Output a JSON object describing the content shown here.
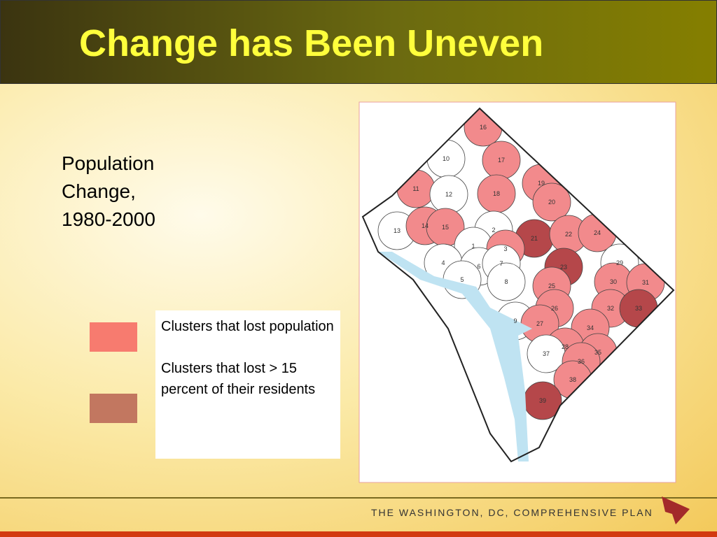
{
  "header": {
    "title": "Change has Been Uneven"
  },
  "subtitle": {
    "lines": [
      "Population",
      "Change,",
      "1980-2000"
    ]
  },
  "legend": {
    "items": [
      {
        "color": "#f77b6f",
        "label": "Clusters that lost population"
      },
      {
        "color": "#c27760",
        "label": "Clusters that lost > 15 percent of their residents"
      }
    ]
  },
  "map": {
    "clusters": [
      {
        "label": "16",
        "color": "#f28a8c"
      },
      {
        "label": "17",
        "color": "#f28a8c"
      },
      {
        "label": "10",
        "color": "#ffffff"
      },
      {
        "label": "11",
        "color": "#f28a8c"
      },
      {
        "label": "12",
        "color": "#ffffff"
      },
      {
        "label": "18",
        "color": "#f28a8c"
      },
      {
        "label": "19",
        "color": "#f28a8c"
      },
      {
        "label": "20",
        "color": "#f28a8c"
      },
      {
        "label": "13",
        "color": "#ffffff"
      },
      {
        "label": "14",
        "color": "#f28a8c"
      },
      {
        "label": "15",
        "color": "#f28a8c"
      },
      {
        "label": "2",
        "color": "#ffffff"
      },
      {
        "label": "21",
        "color": "#b5474a"
      },
      {
        "label": "22",
        "color": "#f28a8c"
      },
      {
        "label": "24",
        "color": "#f28a8c"
      },
      {
        "label": "1",
        "color": "#ffffff"
      },
      {
        "label": "3",
        "color": "#f28a8c"
      },
      {
        "label": "4",
        "color": "#ffffff"
      },
      {
        "label": "6",
        "color": "#ffffff"
      },
      {
        "label": "7",
        "color": "#ffffff"
      },
      {
        "label": "23",
        "color": "#b5474a"
      },
      {
        "label": "29",
        "color": "#ffffff"
      },
      {
        "label": "5",
        "color": "#ffffff"
      },
      {
        "label": "8",
        "color": "#ffffff"
      },
      {
        "label": "25",
        "color": "#f28a8c"
      },
      {
        "label": "30",
        "color": "#f28a8c"
      },
      {
        "label": "31",
        "color": "#f28a8c"
      },
      {
        "label": "26",
        "color": "#f28a8c"
      },
      {
        "label": "32",
        "color": "#f28a8c"
      },
      {
        "label": "33",
        "color": "#b5474a"
      },
      {
        "label": "9",
        "color": "#ffffff"
      },
      {
        "label": "27",
        "color": "#f28a8c"
      },
      {
        "label": "34",
        "color": "#f28a8c"
      },
      {
        "label": "28",
        "color": "#f28a8c"
      },
      {
        "label": "35",
        "color": "#f28a8c"
      },
      {
        "label": "37",
        "color": "#ffffff"
      },
      {
        "label": "36",
        "color": "#f28a8c"
      },
      {
        "label": "38",
        "color": "#f28a8c"
      },
      {
        "label": "39",
        "color": "#b5474a"
      }
    ]
  },
  "footer": {
    "text": "THE WASHINGTON, DC, COMPREHENSIVE PLAN"
  }
}
